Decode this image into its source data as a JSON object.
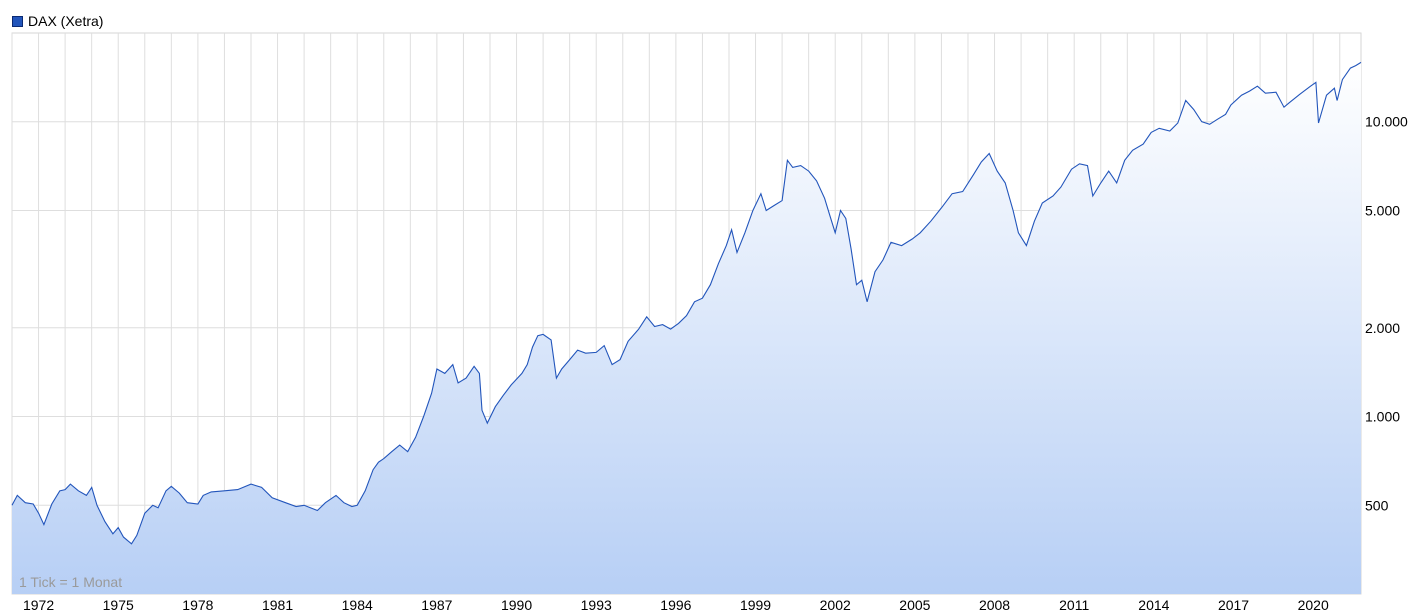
{
  "chart_data": {
    "type": "area",
    "series": [
      {
        "name": "DAX (Xetra)",
        "color": "#2255bb"
      }
    ],
    "y_scale": "log",
    "ylim": [
      250,
      20000
    ],
    "xlim": [
      1971.0,
      2021.8
    ],
    "y_ticks": [
      {
        "value": 500,
        "label": "500"
      },
      {
        "value": 1000,
        "label": "1.000"
      },
      {
        "value": 2000,
        "label": "2.000"
      },
      {
        "value": 5000,
        "label": "5.000"
      },
      {
        "value": 10000,
        "label": "10.000"
      }
    ],
    "x_ticks": [
      {
        "value": 1972,
        "label": "1972"
      },
      {
        "value": 1975,
        "label": "1975"
      },
      {
        "value": 1978,
        "label": "1978"
      },
      {
        "value": 1981,
        "label": "1981"
      },
      {
        "value": 1984,
        "label": "1984"
      },
      {
        "value": 1987,
        "label": "1987"
      },
      {
        "value": 1990,
        "label": "1990"
      },
      {
        "value": 1993,
        "label": "1993"
      },
      {
        "value": 1996,
        "label": "1996"
      },
      {
        "value": 1999,
        "label": "1999"
      },
      {
        "value": 2002,
        "label": "2002"
      },
      {
        "value": 2005,
        "label": "2005"
      },
      {
        "value": 2008,
        "label": "2008"
      },
      {
        "value": 2011,
        "label": "2011"
      },
      {
        "value": 2014,
        "label": "2014"
      },
      {
        "value": 2017,
        "label": "2017"
      },
      {
        "value": 2020,
        "label": "2020"
      }
    ],
    "note": "1 Tick = 1 Monat",
    "grid": true,
    "legend_position": "top-left",
    "points": [
      [
        1971.0,
        500
      ],
      [
        1971.2,
        540
      ],
      [
        1971.5,
        510
      ],
      [
        1971.8,
        505
      ],
      [
        1972.0,
        470
      ],
      [
        1972.2,
        430
      ],
      [
        1972.5,
        505
      ],
      [
        1972.8,
        560
      ],
      [
        1973.0,
        565
      ],
      [
        1973.2,
        590
      ],
      [
        1973.5,
        560
      ],
      [
        1973.8,
        540
      ],
      [
        1974.0,
        575
      ],
      [
        1974.2,
        500
      ],
      [
        1974.5,
        440
      ],
      [
        1974.8,
        400
      ],
      [
        1975.0,
        420
      ],
      [
        1975.2,
        390
      ],
      [
        1975.5,
        370
      ],
      [
        1975.7,
        395
      ],
      [
        1976.0,
        470
      ],
      [
        1976.3,
        500
      ],
      [
        1976.5,
        490
      ],
      [
        1976.8,
        560
      ],
      [
        1977.0,
        580
      ],
      [
        1977.3,
        550
      ],
      [
        1977.6,
        510
      ],
      [
        1978.0,
        505
      ],
      [
        1978.2,
        540
      ],
      [
        1978.5,
        555
      ],
      [
        1979.0,
        560
      ],
      [
        1979.5,
        565
      ],
      [
        1980.0,
        590
      ],
      [
        1980.4,
        575
      ],
      [
        1980.8,
        530
      ],
      [
        1981.3,
        510
      ],
      [
        1981.7,
        495
      ],
      [
        1982.0,
        500
      ],
      [
        1982.5,
        480
      ],
      [
        1982.8,
        510
      ],
      [
        1983.2,
        540
      ],
      [
        1983.5,
        510
      ],
      [
        1983.8,
        495
      ],
      [
        1984.0,
        500
      ],
      [
        1984.3,
        560
      ],
      [
        1984.6,
        660
      ],
      [
        1984.8,
        700
      ],
      [
        1985.0,
        720
      ],
      [
        1985.3,
        760
      ],
      [
        1985.6,
        800
      ],
      [
        1985.9,
        760
      ],
      [
        1986.2,
        850
      ],
      [
        1986.5,
        1000
      ],
      [
        1986.8,
        1200
      ],
      [
        1987.0,
        1450
      ],
      [
        1987.3,
        1400
      ],
      [
        1987.6,
        1500
      ],
      [
        1987.8,
        1300
      ],
      [
        1988.1,
        1350
      ],
      [
        1988.4,
        1480
      ],
      [
        1988.6,
        1400
      ],
      [
        1988.7,
        1050
      ],
      [
        1988.9,
        950
      ],
      [
        1989.2,
        1080
      ],
      [
        1989.5,
        1180
      ],
      [
        1989.8,
        1280
      ],
      [
        1990.2,
        1400
      ],
      [
        1990.4,
        1500
      ],
      [
        1990.6,
        1720
      ],
      [
        1990.8,
        1880
      ],
      [
        1991.0,
        1900
      ],
      [
        1991.3,
        1820
      ],
      [
        1991.5,
        1350
      ],
      [
        1991.7,
        1450
      ],
      [
        1992.0,
        1560
      ],
      [
        1992.3,
        1680
      ],
      [
        1992.6,
        1640
      ],
      [
        1993.0,
        1650
      ],
      [
        1993.3,
        1740
      ],
      [
        1993.6,
        1500
      ],
      [
        1993.9,
        1560
      ],
      [
        1994.2,
        1800
      ],
      [
        1994.6,
        1980
      ],
      [
        1994.9,
        2180
      ],
      [
        1995.2,
        2020
      ],
      [
        1995.5,
        2050
      ],
      [
        1995.8,
        1980
      ],
      [
        1996.1,
        2070
      ],
      [
        1996.4,
        2200
      ],
      [
        1996.7,
        2450
      ],
      [
        1997.0,
        2520
      ],
      [
        1997.3,
        2800
      ],
      [
        1997.6,
        3300
      ],
      [
        1997.9,
        3800
      ],
      [
        1998.1,
        4300
      ],
      [
        1998.3,
        3600
      ],
      [
        1998.6,
        4200
      ],
      [
        1998.9,
        5000
      ],
      [
        1999.2,
        5700
      ],
      [
        1999.4,
        5000
      ],
      [
        1999.7,
        5200
      ],
      [
        2000.0,
        5400
      ],
      [
        2000.2,
        7400
      ],
      [
        2000.4,
        7000
      ],
      [
        2000.7,
        7100
      ],
      [
        2001.0,
        6800
      ],
      [
        2001.3,
        6300
      ],
      [
        2001.6,
        5500
      ],
      [
        2001.8,
        4800
      ],
      [
        2002.0,
        4200
      ],
      [
        2002.2,
        5000
      ],
      [
        2002.4,
        4700
      ],
      [
        2002.6,
        3700
      ],
      [
        2002.8,
        2800
      ],
      [
        2003.0,
        2900
      ],
      [
        2003.2,
        2450
      ],
      [
        2003.5,
        3100
      ],
      [
        2003.8,
        3400
      ],
      [
        2004.1,
        3900
      ],
      [
        2004.5,
        3800
      ],
      [
        2004.9,
        4000
      ],
      [
        2005.2,
        4200
      ],
      [
        2005.6,
        4600
      ],
      [
        2006.0,
        5100
      ],
      [
        2006.4,
        5700
      ],
      [
        2006.8,
        5800
      ],
      [
        2007.2,
        6600
      ],
      [
        2007.5,
        7300
      ],
      [
        2007.8,
        7800
      ],
      [
        2008.1,
        6800
      ],
      [
        2008.4,
        6200
      ],
      [
        2008.7,
        5000
      ],
      [
        2008.9,
        4200
      ],
      [
        2009.2,
        3800
      ],
      [
        2009.5,
        4600
      ],
      [
        2009.8,
        5300
      ],
      [
        2010.2,
        5600
      ],
      [
        2010.5,
        6000
      ],
      [
        2010.9,
        6900
      ],
      [
        2011.2,
        7200
      ],
      [
        2011.5,
        7100
      ],
      [
        2011.7,
        5600
      ],
      [
        2012.0,
        6200
      ],
      [
        2012.3,
        6800
      ],
      [
        2012.6,
        6200
      ],
      [
        2012.9,
        7400
      ],
      [
        2013.2,
        8000
      ],
      [
        2013.6,
        8400
      ],
      [
        2013.9,
        9200
      ],
      [
        2014.2,
        9500
      ],
      [
        2014.6,
        9300
      ],
      [
        2014.9,
        9900
      ],
      [
        2015.2,
        11800
      ],
      [
        2015.5,
        11000
      ],
      [
        2015.8,
        10000
      ],
      [
        2016.1,
        9800
      ],
      [
        2016.4,
        10200
      ],
      [
        2016.7,
        10600
      ],
      [
        2016.9,
        11400
      ],
      [
        2017.3,
        12300
      ],
      [
        2017.6,
        12700
      ],
      [
        2017.9,
        13200
      ],
      [
        2018.2,
        12500
      ],
      [
        2018.6,
        12600
      ],
      [
        2018.9,
        11200
      ],
      [
        2019.1,
        11600
      ],
      [
        2019.5,
        12400
      ],
      [
        2019.9,
        13200
      ],
      [
        2020.1,
        13600
      ],
      [
        2020.2,
        9900
      ],
      [
        2020.5,
        12300
      ],
      [
        2020.8,
        13000
      ],
      [
        2020.9,
        11800
      ],
      [
        2021.1,
        13900
      ],
      [
        2021.4,
        15200
      ],
      [
        2021.6,
        15500
      ],
      [
        2021.8,
        15900
      ]
    ]
  }
}
